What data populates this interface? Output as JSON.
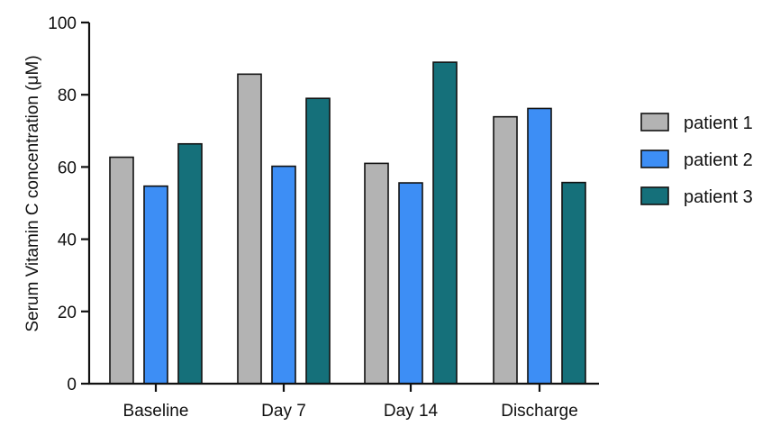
{
  "chart_data": {
    "type": "bar",
    "title": "",
    "xlabel": "",
    "ylabel": "Serum Vitamin C concentration (μM)",
    "ylim": [
      0,
      100
    ],
    "yticks": [
      0,
      20,
      40,
      60,
      80,
      100
    ],
    "categories": [
      "Baseline",
      "Day 7",
      "Day 14",
      "Discharge"
    ],
    "series": [
      {
        "name": "patient 1",
        "color": "#b3b3b3",
        "values": [
          62.7,
          85.7,
          61,
          73.9
        ]
      },
      {
        "name": "patient 2",
        "color": "#3d8ef5",
        "values": [
          54.7,
          60.2,
          55.6,
          76.2
        ]
      },
      {
        "name": "patient 3",
        "color": "#15707a",
        "values": [
          66.4,
          79,
          89,
          55.7
        ]
      }
    ],
    "legend_position": "right",
    "grid": false
  }
}
